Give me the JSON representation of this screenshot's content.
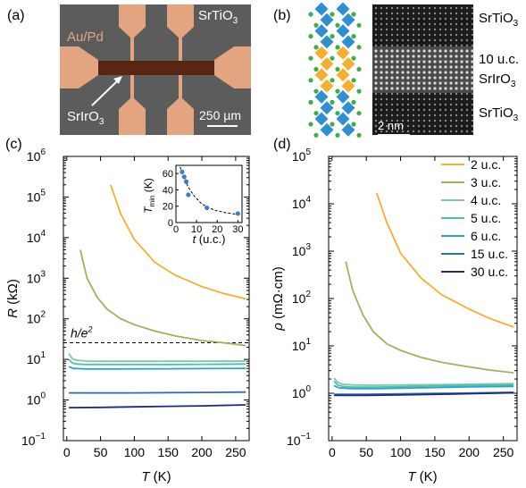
{
  "panel_a": {
    "letter": "(a)",
    "labels": {
      "electrodes": "Au/Pd",
      "substrate_main": "SrTiO",
      "substrate_sub": "3",
      "film_main": "SrIrO",
      "film_sub": "3",
      "scalebar": "250 µm"
    },
    "colors": {
      "background": "#5c5c5c",
      "electrode": "#e2a57f",
      "film": "#5a2512"
    }
  },
  "panel_b": {
    "letter": "(b)",
    "labels": {
      "top_main": "SrTiO",
      "top_sub": "3",
      "thickness": "10 u.c.",
      "mid_main": "SrIrO",
      "mid_sub": "3",
      "bottom_main": "SrTiO",
      "bottom_sub": "3",
      "scalebar": "2 nm"
    },
    "colors": {
      "sto_octahedron": "#2f8fd1",
      "sio_octahedron": "#f5ae30",
      "a_site": "#3fae49"
    }
  },
  "chart_data": [
    {
      "type": "line",
      "panel": "(c)",
      "xlabel_symbol": "T",
      "xlabel_unit": " (K)",
      "ylabel_symbol": "R",
      "ylabel_unit": " (kΩ)",
      "xlim": [
        -5,
        270
      ],
      "ylim": [
        0.1,
        1000000
      ],
      "yscale": "log",
      "xticks": [
        0,
        50,
        100,
        150,
        200,
        250
      ],
      "yticks": [
        {
          "value": 0.1,
          "base": "10",
          "exp": "−1"
        },
        {
          "value": 1,
          "base": "10",
          "exp": "0"
        },
        {
          "value": 10,
          "base": "10",
          "exp": "1"
        },
        {
          "value": 100,
          "base": "10",
          "exp": "2"
        },
        {
          "value": 1000,
          "base": "10",
          "exp": "3"
        },
        {
          "value": 10000,
          "base": "10",
          "exp": "4"
        },
        {
          "value": 100000,
          "base": "10",
          "exp": "5"
        },
        {
          "value": 1000000,
          "base": "10",
          "exp": "6"
        }
      ],
      "hline": {
        "y": 25.8,
        "label_main": "h/e",
        "label_sup": "2"
      },
      "series": [
        {
          "color": "#f5ae30",
          "x": [
            65,
            80,
            100,
            130,
            160,
            200,
            230,
            265
          ],
          "y": [
            200000,
            38000,
            9000,
            2500,
            1200,
            620,
            430,
            310
          ]
        },
        {
          "color": "#a8ad5c",
          "x": [
            20,
            30,
            45,
            60,
            80,
            100,
            130,
            160,
            200,
            230,
            265
          ],
          "y": [
            5000,
            1000,
            340,
            170,
            100,
            72,
            50,
            38,
            29,
            26,
            22
          ]
        },
        {
          "color": "#7ec9a3",
          "x": [
            3,
            8,
            15,
            30,
            60,
            100,
            150,
            200,
            265
          ],
          "y": [
            14,
            10.5,
            9.5,
            9.1,
            9.0,
            9.0,
            9.0,
            9.0,
            9.1
          ]
        },
        {
          "color": "#4fbfb0",
          "x": [
            3,
            8,
            15,
            30,
            60,
            100,
            150,
            200,
            265
          ],
          "y": [
            10,
            8.2,
            7.7,
            7.5,
            7.5,
            7.5,
            7.5,
            7.6,
            7.7
          ]
        },
        {
          "color": "#2aa5c8",
          "x": [
            3,
            10,
            30,
            60,
            100,
            150,
            200,
            265
          ],
          "y": [
            6.6,
            6.0,
            5.8,
            5.8,
            5.85,
            5.9,
            5.95,
            6.0
          ]
        },
        {
          "color": "#2a6fb6",
          "x": [
            3,
            50,
            100,
            150,
            200,
            265
          ],
          "y": [
            1.5,
            1.5,
            1.5,
            1.52,
            1.54,
            1.57
          ]
        },
        {
          "color": "#1c2a80",
          "x": [
            3,
            50,
            100,
            150,
            200,
            265
          ],
          "y": [
            0.65,
            0.66,
            0.68,
            0.7,
            0.72,
            0.76
          ]
        }
      ],
      "inset": {
        "xlabel_symbol": "t",
        "xlabel_unit": " (u.c.)",
        "ylabel_symbol": "T",
        "ylabel_sub": "min",
        "ylabel_unit": " (K)",
        "xlim": [
          0,
          32
        ],
        "ylim": [
          0,
          70
        ],
        "xticks": [
          0,
          10,
          20,
          30
        ],
        "yticks": [
          0,
          20,
          40,
          60
        ],
        "points": {
          "x": [
            3,
            4,
            5,
            6,
            15,
            30
          ],
          "y": [
            62,
            56,
            50,
            34,
            18,
            11
          ]
        },
        "fit": {
          "x": [
            2,
            4,
            6,
            9,
            12,
            15,
            19,
            24,
            30
          ],
          "y": [
            68,
            55,
            43,
            32,
            24,
            19,
            15,
            12,
            10
          ]
        },
        "point_color": "#3a7fc4"
      }
    },
    {
      "type": "line",
      "panel": "(d)",
      "xlabel_symbol": "T",
      "xlabel_unit": " (K)",
      "ylabel_symbol": "ρ",
      "ylabel_unit": " (mΩ·cm)",
      "xlim": [
        -5,
        270
      ],
      "ylim": [
        0.1,
        100000
      ],
      "yscale": "log",
      "xticks": [
        0,
        50,
        100,
        150,
        200,
        250
      ],
      "yticks": [
        {
          "value": 0.1,
          "base": "10",
          "exp": "−1"
        },
        {
          "value": 1,
          "base": "10",
          "exp": "0"
        },
        {
          "value": 10,
          "base": "10",
          "exp": "1"
        },
        {
          "value": 100,
          "base": "10",
          "exp": "2"
        },
        {
          "value": 1000,
          "base": "10",
          "exp": "3"
        },
        {
          "value": 10000,
          "base": "10",
          "exp": "4"
        },
        {
          "value": 100000,
          "base": "10",
          "exp": "5"
        }
      ],
      "legend_position": "top-right",
      "series": [
        {
          "name": "2 u.c.",
          "color": "#f5ae30",
          "x": [
            65,
            80,
            100,
            130,
            160,
            200,
            230,
            265
          ],
          "y": [
            17000,
            4000,
            900,
            270,
            120,
            60,
            38,
            25
          ]
        },
        {
          "name": "3 u.c.",
          "color": "#a8ad5c",
          "x": [
            20,
            30,
            45,
            60,
            80,
            100,
            130,
            160,
            200,
            230,
            265
          ],
          "y": [
            600,
            150,
            45,
            20,
            11,
            8,
            5.7,
            4.5,
            3.6,
            3.1,
            2.7
          ]
        },
        {
          "name": "4 u.c.",
          "color": "#7ec9a3",
          "x": [
            3,
            8,
            15,
            30,
            60,
            100,
            150,
            200,
            265
          ],
          "y": [
            2.1,
            1.7,
            1.55,
            1.5,
            1.48,
            1.5,
            1.52,
            1.55,
            1.6
          ]
        },
        {
          "name": "5 u.c.",
          "color": "#4fbfb0",
          "x": [
            3,
            8,
            15,
            30,
            60,
            100,
            150,
            200,
            265
          ],
          "y": [
            1.8,
            1.5,
            1.4,
            1.35,
            1.35,
            1.38,
            1.42,
            1.46,
            1.5
          ]
        },
        {
          "name": "6 u.c.",
          "color": "#2aa5c8",
          "x": [
            3,
            10,
            30,
            60,
            100,
            150,
            200,
            265
          ],
          "y": [
            1.45,
            1.3,
            1.25,
            1.25,
            1.28,
            1.32,
            1.36,
            1.4
          ]
        },
        {
          "name": "15 u.c.",
          "color": "#2a6fb6",
          "x": [
            3,
            50,
            100,
            150,
            200,
            265
          ],
          "y": [
            0.95,
            0.95,
            0.97,
            0.99,
            1.01,
            1.05
          ]
        },
        {
          "name": "30 u.c.",
          "color": "#1c2a80",
          "x": [
            3,
            50,
            100,
            150,
            200,
            265
          ],
          "y": [
            0.9,
            0.9,
            0.92,
            0.95,
            0.98,
            1.02
          ]
        }
      ]
    }
  ]
}
